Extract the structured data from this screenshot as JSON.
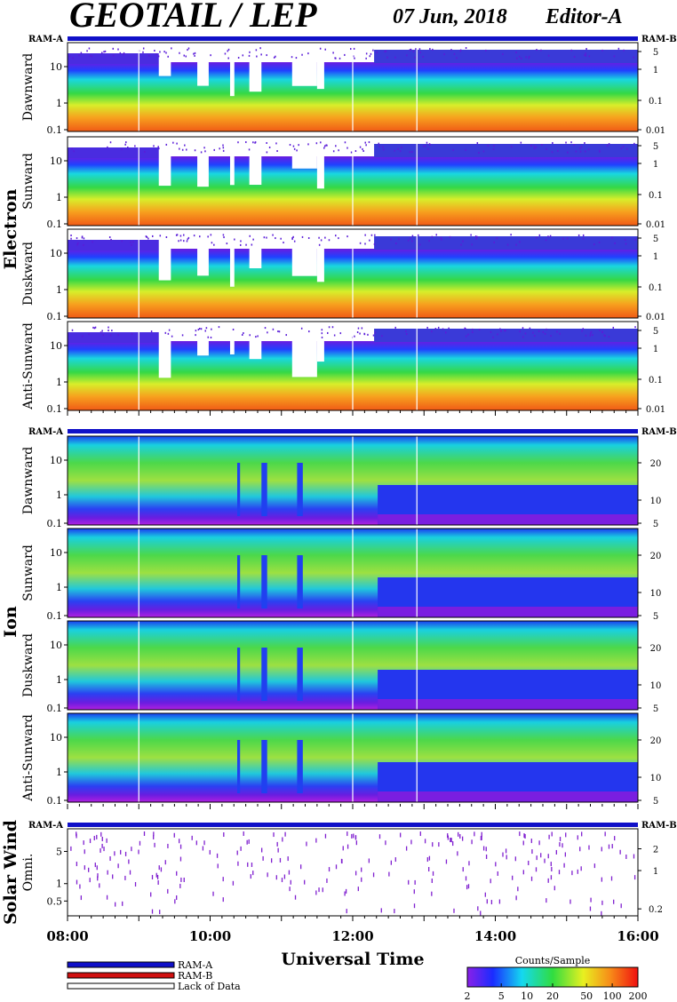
{
  "header": {
    "instrument": "GEOTAIL / LEP",
    "date": "07 Jun, 2018",
    "editor": "Editor-A"
  },
  "groups": [
    {
      "label": "Electron",
      "panels": [
        "Dawnward",
        "Sunward",
        "Duskward",
        "Anti-Sunward"
      ]
    },
    {
      "label": "Ion",
      "panels": [
        "Dawnward",
        "Sunward",
        "Duskward",
        "Anti-Sunward"
      ]
    },
    {
      "label": "Solar Wind",
      "panels": [
        "Omni."
      ]
    }
  ],
  "bar_labels": {
    "left": "RAM-A",
    "right": "RAM-B"
  },
  "chart_data": {
    "type": "heatmap",
    "xlabel": "Universal Time",
    "x_ticks": [
      "08:00",
      "10:00",
      "12:00",
      "14:00",
      "16:00"
    ],
    "x_range_hours": [
      8,
      16
    ],
    "electron_left_ticks": [
      "10",
      "1",
      "0.1"
    ],
    "electron_right_ticks": [
      "5",
      "1",
      "0.1",
      "0.01"
    ],
    "ion_left_ticks": [
      "10",
      "1",
      "0.1"
    ],
    "ion_right_ticks": [
      "20",
      "10",
      "5"
    ],
    "solar_left_ticks": [
      "5",
      "1",
      "0.5"
    ],
    "solar_right_ticks": [
      "2",
      "1",
      "0.2"
    ],
    "colorbar": {
      "title": "Counts/Sample",
      "ticks": [
        "2",
        "5",
        "10",
        "20",
        "50",
        "100",
        "200"
      ],
      "values": [
        2,
        5,
        10,
        20,
        50,
        100,
        200
      ]
    }
  },
  "legend": [
    {
      "label": "RAM-A",
      "color": "#1010c8"
    },
    {
      "label": "RAM-B",
      "color": "#d01010"
    },
    {
      "label": "Lack of Data",
      "color": "#ffffff"
    }
  ]
}
